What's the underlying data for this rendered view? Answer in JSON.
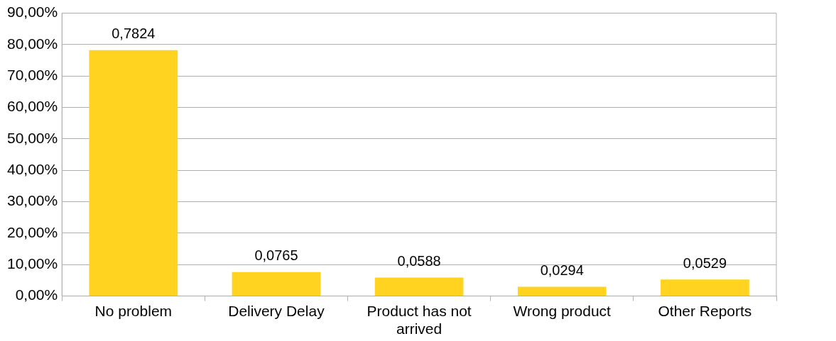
{
  "chart_data": {
    "type": "bar",
    "categories": [
      "No problem",
      "Delivery Delay",
      "Product has not arrived",
      "Wrong product",
      "Other Reports"
    ],
    "values": [
      0.7824,
      0.0765,
      0.0588,
      0.0294,
      0.0529
    ],
    "color": "#ffd320",
    "ylim": [
      0,
      0.9
    ],
    "yticks": [
      {
        "value": 0,
        "label": "0,00%"
      },
      {
        "value": 0.1,
        "label": "10,00%"
      },
      {
        "value": 0.2,
        "label": "20,00%"
      },
      {
        "value": 0.3,
        "label": "30,00%"
      },
      {
        "value": 0.4,
        "label": "40,00%"
      },
      {
        "value": 0.5,
        "label": "50,00%"
      },
      {
        "value": 0.6,
        "label": "60,00%"
      },
      {
        "value": 0.7,
        "label": "70,00%"
      },
      {
        "value": 0.8,
        "label": "80,00%"
      },
      {
        "value": 0.9,
        "label": "90,00%"
      }
    ],
    "value_labels": [
      "0,7824",
      "0,0765",
      "0,0588",
      "0,0294",
      "0,0529"
    ],
    "grid": "y"
  }
}
